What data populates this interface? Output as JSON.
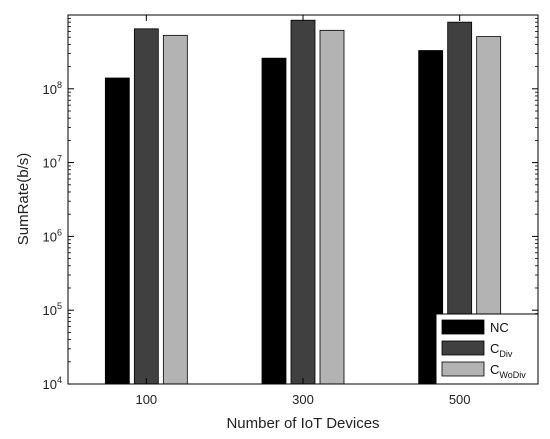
{
  "chart_data": {
    "type": "bar",
    "xlabel": "Number of IoT Devices",
    "ylabel": "SumRate(b/s)",
    "yscale": "log",
    "ylim": [
      10000,
      1000000000
    ],
    "yticks": [
      {
        "base": "10",
        "exp": "4"
      },
      {
        "base": "10",
        "exp": "5"
      },
      {
        "base": "10",
        "exp": "6"
      },
      {
        "base": "10",
        "exp": "7"
      },
      {
        "base": "10",
        "exp": "8"
      }
    ],
    "categories": [
      "100",
      "300",
      "500"
    ],
    "series": [
      {
        "name": "NC",
        "color": "#000000",
        "values": [
          140000000,
          260000000,
          330000000
        ]
      },
      {
        "name": "C",
        "subscript": "Div",
        "color": "#404040",
        "values": [
          650000000,
          850000000,
          800000000
        ]
      },
      {
        "name": "C",
        "subscript": "WoDiv",
        "color": "#b3b3b3",
        "values": [
          530000000,
          620000000,
          510000000
        ]
      }
    ],
    "grid": false,
    "legend_position": "bottom-right"
  }
}
